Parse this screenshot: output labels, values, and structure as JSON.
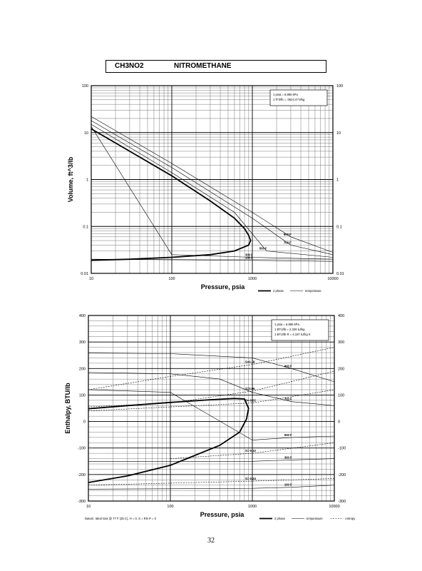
{
  "header": {
    "formula": "CH3NO2",
    "name": "NITROMETHANE"
  },
  "page_number": "32",
  "chart_data": [
    {
      "type": "line",
      "xlabel": "Pressure, psia",
      "ylabel": "Volume, ft^3/lb",
      "x_scale": "log",
      "y_scale": "log",
      "xlim": [
        10,
        10000
      ],
      "ylim": [
        0.01,
        100
      ],
      "x_ticks": [
        "10",
        "100",
        "1000",
        "10000"
      ],
      "y_ticks": [
        "0.01",
        "0.1",
        "1",
        "10",
        "100"
      ],
      "grid": true,
      "conversion_notes": [
        "1 psia = 6.895 kPa",
        "1 ft^3/lb = .0624 m^3/kg"
      ],
      "legend": [
        {
          "label": "2 phase",
          "style": "thick"
        },
        {
          "label": "temperature",
          "style": "thin"
        }
      ],
      "annotations": [
        "900 F",
        "700 F",
        "500 F",
        "300 F",
        "100 F"
      ],
      "series": [
        {
          "kind": "2 phase",
          "x": [
            10,
            30,
            100,
            300,
            600,
            800,
            900,
            950,
            900,
            600,
            300,
            100,
            30,
            10
          ],
          "y": [
            12,
            4,
            1.2,
            0.35,
            0.15,
            0.09,
            0.065,
            0.05,
            0.04,
            0.03,
            0.025,
            0.022,
            0.02,
            0.019
          ]
        },
        {
          "kind": "temperature",
          "label": "900 F",
          "x": [
            10,
            100,
            1000,
            3000,
            10000
          ],
          "y": [
            22,
            2.2,
            0.2,
            0.06,
            0.028
          ]
        },
        {
          "kind": "temperature",
          "label": "700 F",
          "x": [
            10,
            100,
            1000,
            3000,
            10000
          ],
          "y": [
            18,
            1.8,
            0.15,
            0.04,
            0.025
          ]
        },
        {
          "kind": "temperature",
          "label": "500 F",
          "x": [
            10,
            100,
            600,
            1500,
            10000
          ],
          "y": [
            15,
            1.4,
            0.2,
            0.03,
            0.022
          ]
        },
        {
          "kind": "temperature",
          "label": "300 F",
          "x": [
            10,
            100,
            1000,
            10000
          ],
          "y": [
            13.5,
            0.025,
            0.022,
            0.02
          ]
        },
        {
          "kind": "temperature",
          "label": "100 F",
          "x": [
            10,
            1000,
            10000
          ],
          "y": [
            0.02,
            0.019,
            0.018
          ]
        }
      ]
    },
    {
      "type": "line",
      "xlabel": "Pressure, psia",
      "ylabel": "Enthalpy, BTU/lb",
      "x_scale": "log",
      "xlim": [
        10,
        10000
      ],
      "ylim": [
        -300,
        400
      ],
      "x_ticks": [
        "10",
        "100",
        "1000",
        "10000"
      ],
      "y_ticks": [
        "-300",
        "-200",
        "-100",
        "0",
        "100",
        "200",
        "300",
        "400"
      ],
      "grid": true,
      "conversion_notes": [
        "1 psia = 6.895 kPa",
        "1 BTU/lb = 2.326 kJ/kg",
        "1 BTU/lb R = 4.187 kJ/kg K"
      ],
      "datum_note": "Datum: Ideal Gas @ 77 F (25 C), H = 0, S = Rln P = 0",
      "legend": [
        {
          "label": "2 phase",
          "style": "thick"
        },
        {
          "label": "temperature",
          "style": "thin"
        },
        {
          "label": "entropy",
          "style": "dashed"
        }
      ],
      "annotations": [
        "S=0.18",
        "900 F",
        "S=0.06",
        "700 F",
        "S=-0.02",
        "500 F",
        "S=-0.10",
        "300 F",
        "S=-0.24",
        "100 F"
      ],
      "series": [
        {
          "kind": "2 phase",
          "x": [
            10,
            30,
            100,
            300,
            600,
            800,
            900,
            850,
            700,
            400,
            100,
            30,
            10
          ],
          "y": [
            48,
            60,
            72,
            82,
            87,
            85,
            50,
            10,
            -40,
            -90,
            -165,
            -205,
            -230
          ]
        },
        {
          "kind": "temperature",
          "label": "900 F",
          "x": [
            10,
            100,
            1000,
            3000,
            10000
          ],
          "y": [
            258,
            256,
            240,
            200,
            150
          ]
        },
        {
          "kind": "temperature",
          "label": "700 F",
          "x": [
            10,
            100,
            400,
            1000,
            3000,
            10000
          ],
          "y": [
            185,
            180,
            160,
            110,
            75,
            60
          ]
        },
        {
          "kind": "temperature",
          "label": "500 F",
          "x": [
            10,
            100,
            1000,
            3000,
            10000
          ],
          "y": [
            120,
            110,
            -70,
            -60,
            -55
          ]
        },
        {
          "kind": "temperature",
          "label": "300 F",
          "x": [
            10,
            1000,
            3000,
            10000
          ],
          "y": [
            -150,
            -150,
            -145,
            -140
          ]
        },
        {
          "kind": "temperature",
          "label": "100 F",
          "x": [
            10,
            1000,
            3000,
            10000
          ],
          "y": [
            -255,
            -252,
            -248,
            -240
          ]
        },
        {
          "kind": "entropy",
          "label": "S=0.18",
          "x": [
            10,
            100,
            1000,
            10000
          ],
          "y": [
            120,
            170,
            215,
            280
          ]
        },
        {
          "kind": "entropy",
          "label": "S=0.06",
          "x": [
            10,
            100,
            1000,
            10000
          ],
          "y": [
            55,
            70,
            115,
            190
          ]
        },
        {
          "kind": "entropy",
          "label": "S=-0.02",
          "x": [
            10,
            100,
            1000,
            10000
          ],
          "y": [
            40,
            55,
            70,
            120
          ]
        },
        {
          "kind": "entropy",
          "label": "S=-0.10",
          "x": [
            100,
            1000,
            10000
          ],
          "y": [
            -140,
            -120,
            -80
          ]
        },
        {
          "kind": "entropy",
          "label": "S=-0.24",
          "x": [
            10,
            1000,
            10000
          ],
          "y": [
            -240,
            -225,
            -215
          ]
        }
      ]
    }
  ]
}
